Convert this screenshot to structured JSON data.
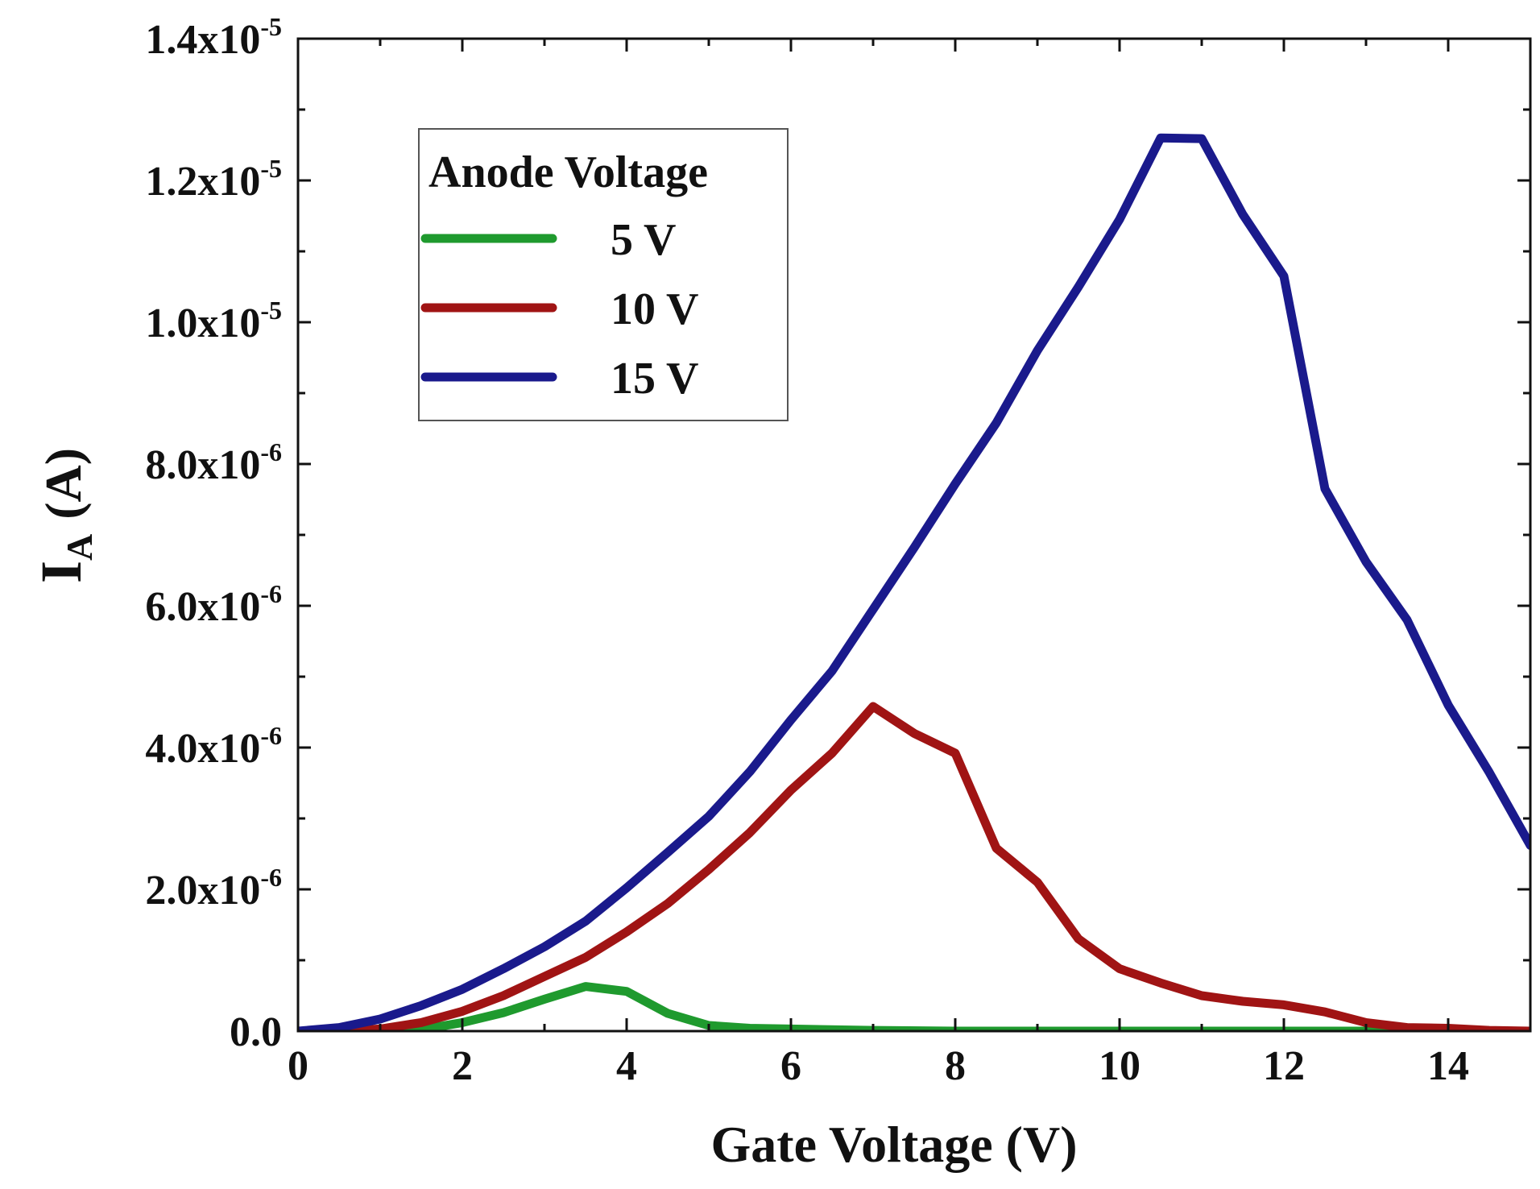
{
  "chart_data": {
    "type": "line",
    "xlabel": "Gate Voltage (V)",
    "ylabel_main": "I",
    "ylabel_sub": "A",
    "ylabel_unit": "(A)",
    "xlim": [
      0,
      15
    ],
    "ylim": [
      0,
      1.4e-05
    ],
    "x_ticks": [
      {
        "value": 0,
        "label": "0"
      },
      {
        "value": 2,
        "label": "2"
      },
      {
        "value": 4,
        "label": "4"
      },
      {
        "value": 6,
        "label": "6"
      },
      {
        "value": 8,
        "label": "8"
      },
      {
        "value": 10,
        "label": "10"
      },
      {
        "value": 12,
        "label": "12"
      },
      {
        "value": 14,
        "label": "14"
      }
    ],
    "y_ticks": [
      {
        "value": 0,
        "mantissa": "0.0",
        "exponent": ""
      },
      {
        "value": 2e-06,
        "mantissa": "2.0x10",
        "exponent": "-6"
      },
      {
        "value": 4e-06,
        "mantissa": "4.0x10",
        "exponent": "-6"
      },
      {
        "value": 6e-06,
        "mantissa": "6.0x10",
        "exponent": "-6"
      },
      {
        "value": 8e-06,
        "mantissa": "8.0x10",
        "exponent": "-6"
      },
      {
        "value": 1e-05,
        "mantissa": "1.0x10",
        "exponent": "-5"
      },
      {
        "value": 1.2e-05,
        "mantissa": "1.2x10",
        "exponent": "-5"
      },
      {
        "value": 1.4e-05,
        "mantissa": "1.4x10",
        "exponent": "-5"
      }
    ],
    "legend": {
      "title": "Anode Voltage",
      "position": "top-left"
    },
    "series": [
      {
        "name": "5 V",
        "color": "#1f9a2e",
        "x": [
          0,
          1,
          1.5,
          2,
          2.5,
          3,
          3.5,
          4,
          4.5,
          5,
          5.5,
          6,
          7,
          8,
          9,
          10,
          11,
          12,
          13,
          14,
          15
        ],
        "y": [
          0,
          0,
          2e-08,
          1.2e-07,
          2.6e-07,
          4.5e-07,
          6.3e-07,
          5.6e-07,
          2.5e-07,
          8e-08,
          4e-08,
          3e-08,
          1e-08,
          0,
          0,
          0,
          0,
          0,
          0,
          0,
          0
        ]
      },
      {
        "name": "10 V",
        "color": "#a01414",
        "x": [
          0,
          0.5,
          1,
          1.5,
          2,
          2.5,
          3,
          3.5,
          4,
          4.5,
          5,
          5.5,
          6,
          6.5,
          7,
          7.5,
          8,
          8.5,
          9,
          9.5,
          10,
          10.5,
          11,
          11.5,
          12,
          12.5,
          13,
          13.5,
          14,
          14.5,
          15
        ],
        "y": [
          0,
          0,
          3e-08,
          1.2e-07,
          2.8e-07,
          5e-07,
          7.7e-07,
          1.04e-06,
          1.4e-06,
          1.8e-06,
          2.28e-06,
          2.8e-06,
          3.4e-06,
          3.92e-06,
          4.58e-06,
          4.2e-06,
          3.92e-06,
          2.58e-06,
          2.1e-06,
          1.3e-06,
          8.8e-07,
          6.8e-07,
          5e-07,
          4.2e-07,
          3.7e-07,
          2.7e-07,
          1.2e-07,
          5e-08,
          4e-08,
          1e-08,
          0
        ]
      },
      {
        "name": "15 V",
        "color": "#1a1a8c",
        "x": [
          0,
          0.5,
          1,
          1.5,
          2,
          2.5,
          3,
          3.5,
          4,
          4.5,
          5,
          5.5,
          6,
          6.5,
          7,
          7.5,
          8,
          8.5,
          9,
          9.5,
          10,
          10.5,
          11,
          11.5,
          12,
          12.5,
          13,
          13.5,
          14,
          14.5,
          15
        ],
        "y": [
          0,
          5e-08,
          1.7e-07,
          3.6e-07,
          5.9e-07,
          8.8e-07,
          1.19e-06,
          1.55e-06,
          2.02e-06,
          2.52e-06,
          3.03e-06,
          3.66e-06,
          4.39e-06,
          5.08e-06,
          5.95e-06,
          6.82e-06,
          7.72e-06,
          8.58e-06,
          9.6e-06,
          1.05e-05,
          1.145e-05,
          1.26e-05,
          1.259e-05,
          1.152e-05,
          1.065e-05,
          7.65e-06,
          6.62e-06,
          5.8e-06,
          4.6e-06,
          3.65e-06,
          2.62e-06
        ]
      }
    ]
  }
}
